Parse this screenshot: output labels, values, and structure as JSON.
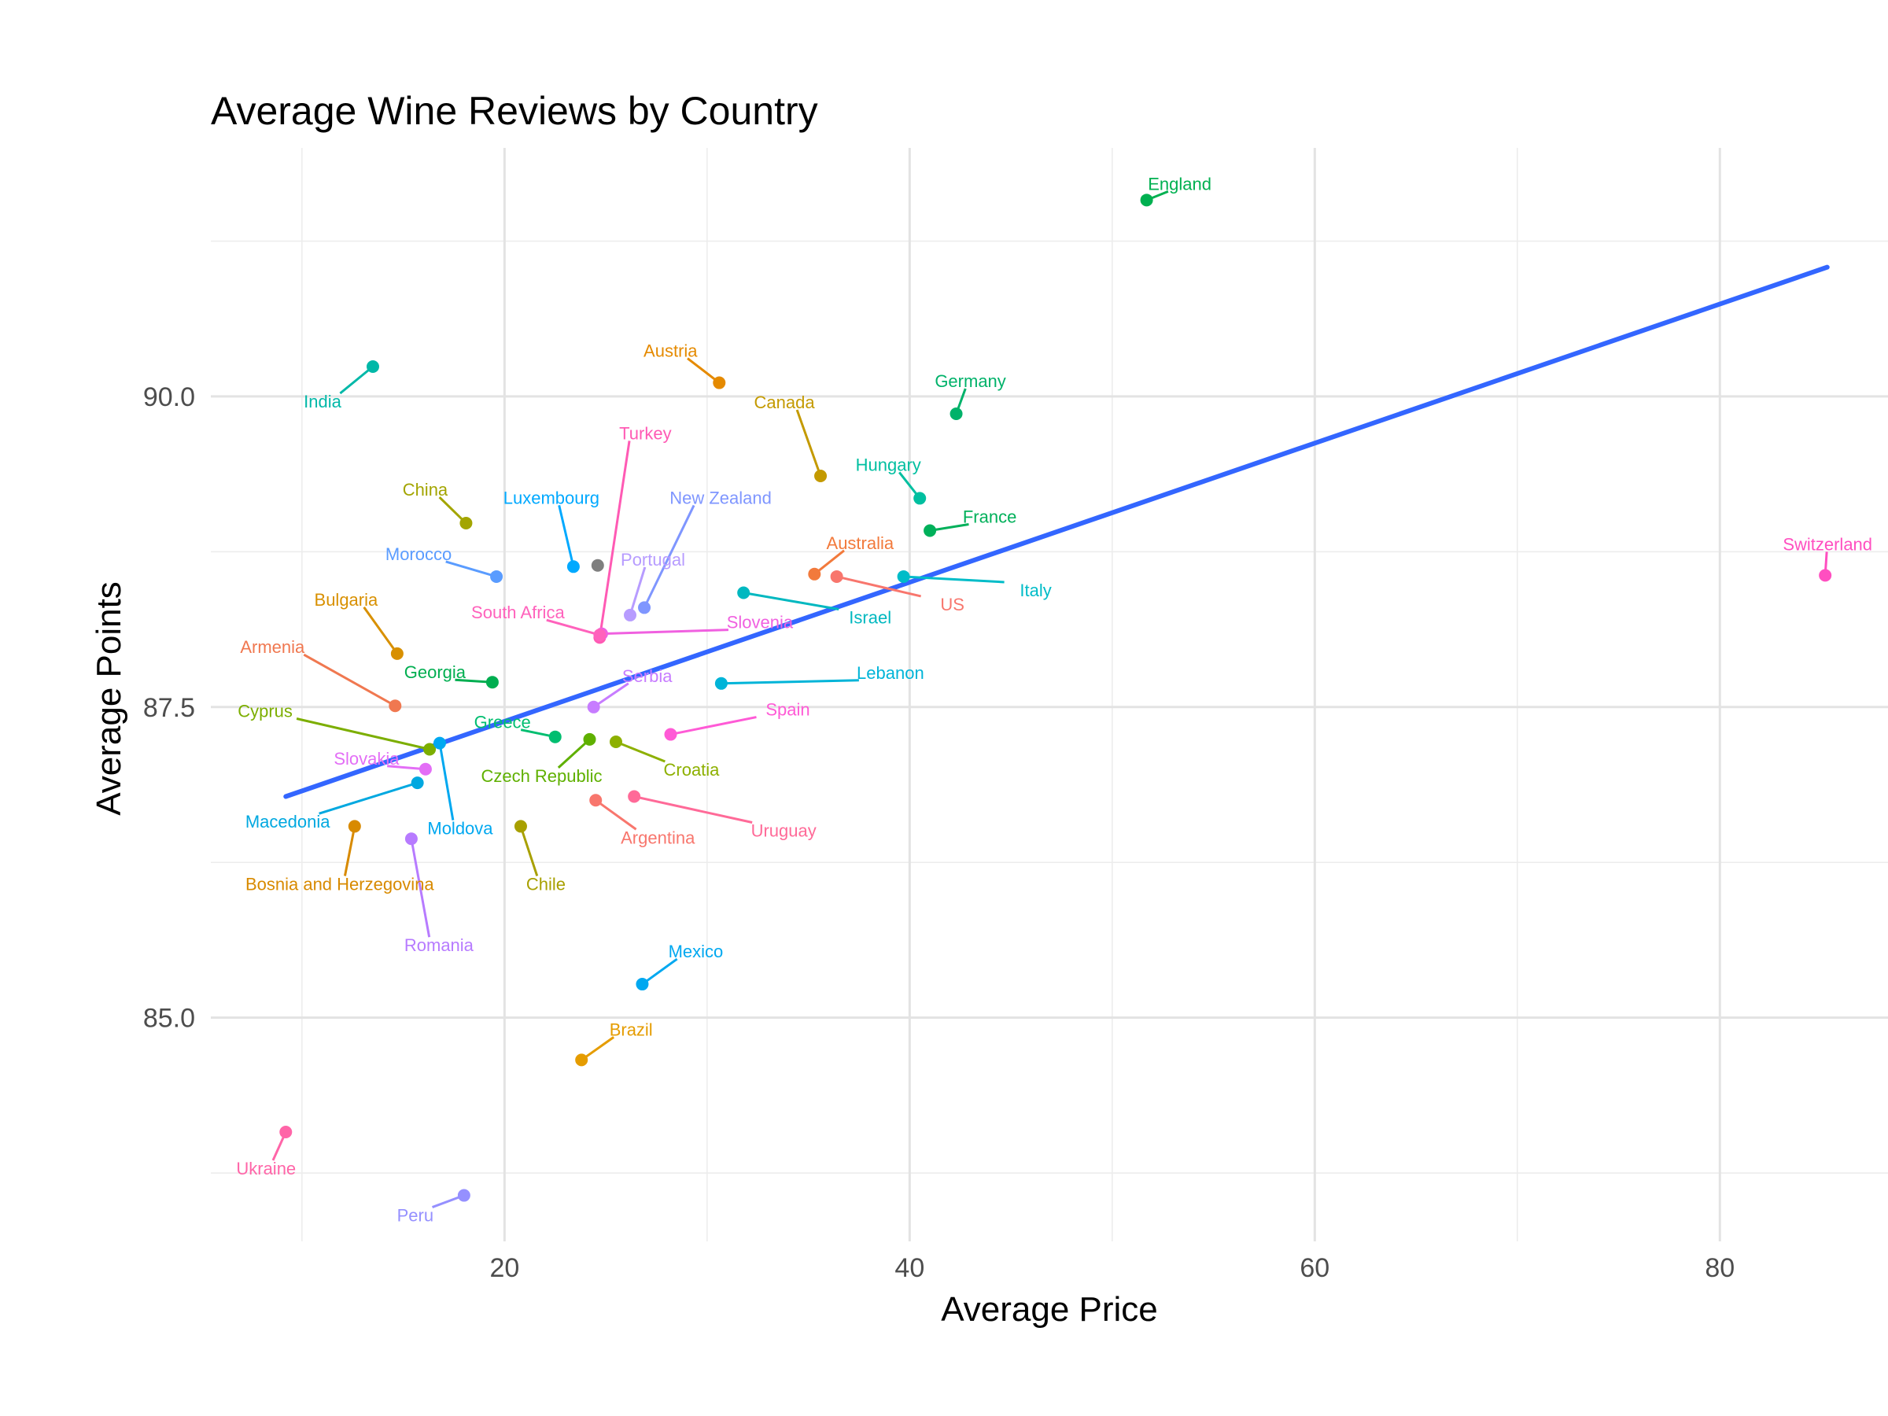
{
  "chart_data": {
    "type": "scatter",
    "title": "Average Wine Reviews by Country",
    "xlabel": "Average Price",
    "ylabel": "Average Points",
    "xlim": [
      5.5,
      88.3
    ],
    "ylim": [
      83.2,
      92.0
    ],
    "x_ticks": [
      20,
      40,
      60,
      80
    ],
    "x_tick_labels": [
      "20",
      "40",
      "60",
      "80"
    ],
    "y_ticks": [
      85.0,
      87.5,
      90.0
    ],
    "y_tick_labels": [
      "85.0",
      "87.5",
      "90.0"
    ],
    "grid": true,
    "legend": "none",
    "trend_line": {
      "type": "linear",
      "color": "#3366ff",
      "x": [
        9.2,
        85.3
      ],
      "y": [
        86.78,
        91.04
      ]
    },
    "points": [
      {
        "name": "England",
        "x": 51.7,
        "y": 91.58,
        "color": "#00b050",
        "label_offset": [
          42,
          -21
        ]
      },
      {
        "name": "India",
        "x": 13.5,
        "y": 90.24,
        "color": "#00b8a8",
        "label_offset": [
          -64,
          44
        ]
      },
      {
        "name": "Austria",
        "x": 30.6,
        "y": 90.11,
        "color": "#e58a00",
        "label_offset": [
          -62,
          -41
        ]
      },
      {
        "name": "Germany",
        "x": 42.3,
        "y": 89.86,
        "color": "#00b26a",
        "label_offset": [
          18,
          -42
        ]
      },
      {
        "name": "Canada",
        "x": 35.6,
        "y": 89.36,
        "color": "#c49a00",
        "label_offset": [
          -46,
          -94
        ]
      },
      {
        "name": "Turkey",
        "x": 24.7,
        "y": 88.06,
        "color": "#ff5ab4",
        "label_offset": [
          58,
          -260
        ]
      },
      {
        "name": "Hungary",
        "x": 40.5,
        "y": 89.18,
        "color": "#00bfa0",
        "label_offset": [
          -40,
          -43
        ]
      },
      {
        "name": "China",
        "x": 18.1,
        "y": 88.98,
        "color": "#a3a500",
        "label_offset": [
          -52,
          -43
        ]
      },
      {
        "name": "Luxembourg",
        "x": 23.4,
        "y": 88.63,
        "color": "#00a9ff",
        "label_offset": [
          -28,
          -88
        ]
      },
      {
        "name": "New Zealand",
        "x": 26.9,
        "y": 88.3,
        "color": "#7f96ff",
        "label_offset": [
          97,
          -140
        ]
      },
      {
        "name": "France",
        "x": 41.0,
        "y": 88.92,
        "color": "#00b05a",
        "label_offset": [
          76,
          -18
        ]
      },
      {
        "name": "Morocco",
        "x": 19.6,
        "y": 88.55,
        "color": "#5a9cff",
        "label_offset": [
          -99,
          -29
        ]
      },
      {
        "name": "Portugal",
        "x": 26.2,
        "y": 88.24,
        "color": "#b79cff",
        "label_offset": [
          29,
          -71
        ]
      },
      {
        "name": "Australia",
        "x": 35.3,
        "y": 88.57,
        "color": "#f27a3c",
        "label_offset": [
          58,
          -40
        ]
      },
      {
        "name": "Switzerland",
        "x": 85.2,
        "y": 88.56,
        "color": "#ff4fc0",
        "label_offset": [
          3,
          -40
        ]
      },
      {
        "name": "US",
        "x": 36.4,
        "y": 88.55,
        "color": "#f8766d",
        "label_offset": [
          147,
          35
        ]
      },
      {
        "name": "Italy",
        "x": 39.7,
        "y": 88.55,
        "color": "#00bcc8",
        "label_offset": [
          168,
          17
        ]
      },
      {
        "name": "Israel",
        "x": 31.8,
        "y": 88.42,
        "color": "#00b8c0",
        "label_offset": [
          161,
          31
        ]
      },
      {
        "name": "Slovenia",
        "x": 24.8,
        "y": 88.09,
        "color": "#f060e0",
        "label_offset": [
          201,
          -15
        ]
      },
      {
        "name": "South Africa",
        "x": 24.7,
        "y": 88.08,
        "color": "#ff62bc",
        "label_offset": [
          -104,
          -29
        ]
      },
      {
        "name": "Bulgaria",
        "x": 14.7,
        "y": 87.93,
        "color": "#d89000",
        "label_offset": [
          -65,
          -69
        ]
      },
      {
        "name": "Armenia",
        "x": 14.6,
        "y": 87.51,
        "color": "#f07850",
        "label_offset": [
          -156,
          -75
        ]
      },
      {
        "name": "Georgia",
        "x": 19.4,
        "y": 87.7,
        "color": "#00ae50",
        "label_offset": [
          -73,
          -13
        ]
      },
      {
        "name": "Lebanon",
        "x": 30.7,
        "y": 87.69,
        "color": "#00b4d8",
        "label_offset": [
          215,
          -14
        ]
      },
      {
        "name": "Serbia",
        "x": 24.4,
        "y": 87.5,
        "color": "#c77cff",
        "label_offset": [
          68,
          -40
        ]
      },
      {
        "name": "Cyprus",
        "x": 16.3,
        "y": 87.16,
        "color": "#7cae00",
        "label_offset": [
          -209,
          -49
        ]
      },
      {
        "name": "Greece",
        "x": 22.5,
        "y": 87.26,
        "color": "#00be70",
        "label_offset": [
          -67,
          -19
        ]
      },
      {
        "name": "Spain",
        "x": 28.2,
        "y": 87.28,
        "color": "#ff5ad6",
        "label_offset": [
          149,
          -32
        ]
      },
      {
        "name": "Moldova",
        "x": 16.8,
        "y": 87.21,
        "color": "#00a8f0",
        "label_offset": [
          26,
          108
        ]
      },
      {
        "name": "Czech Republic",
        "x": 24.2,
        "y": 87.24,
        "color": "#5fb000",
        "label_offset": [
          -61,
          46
        ]
      },
      {
        "name": "Croatia",
        "x": 25.5,
        "y": 87.22,
        "color": "#8db000",
        "label_offset": [
          96,
          35
        ]
      },
      {
        "name": "Slovakia",
        "x": 16.1,
        "y": 87.0,
        "color": "#e36ef6",
        "label_offset": [
          -75,
          -14
        ]
      },
      {
        "name": "Macedonia",
        "x": 15.7,
        "y": 86.89,
        "color": "#00a8e0",
        "label_offset": [
          -165,
          49
        ]
      },
      {
        "name": "Argentina",
        "x": 24.5,
        "y": 86.75,
        "color": "#f8766d",
        "label_offset": [
          79,
          47
        ]
      },
      {
        "name": "Uruguay",
        "x": 26.4,
        "y": 86.78,
        "color": "#ff6a98",
        "label_offset": [
          190,
          43
        ]
      },
      {
        "name": "Bosnia and Herzegovina",
        "x": 12.6,
        "y": 86.54,
        "color": "#d88a00",
        "label_offset": [
          -19,
          73
        ]
      },
      {
        "name": "Chile",
        "x": 20.8,
        "y": 86.54,
        "color": "#a8a000",
        "label_offset": [
          32,
          73
        ]
      },
      {
        "name": "Romania",
        "x": 15.4,
        "y": 86.44,
        "color": "#b77bff",
        "label_offset": [
          35,
          135
        ]
      },
      {
        "name": "Mexico",
        "x": 26.8,
        "y": 85.27,
        "color": "#00a8f0",
        "label_offset": [
          68,
          -42
        ]
      },
      {
        "name": "Brazil",
        "x": 23.8,
        "y": 84.66,
        "color": "#e59c00",
        "label_offset": [
          63,
          -39
        ]
      },
      {
        "name": "Ukraine",
        "x": 9.2,
        "y": 84.08,
        "color": "#ff65a8",
        "label_offset": [
          -25,
          46
        ]
      },
      {
        "name": "Peru",
        "x": 18.0,
        "y": 83.57,
        "color": "#9590ff",
        "label_offset": [
          -62,
          25
        ]
      },
      {
        "name": "",
        "x": 24.6,
        "y": 88.64,
        "color": "#7f7f7f",
        "label_offset": [
          0,
          0
        ]
      }
    ]
  }
}
